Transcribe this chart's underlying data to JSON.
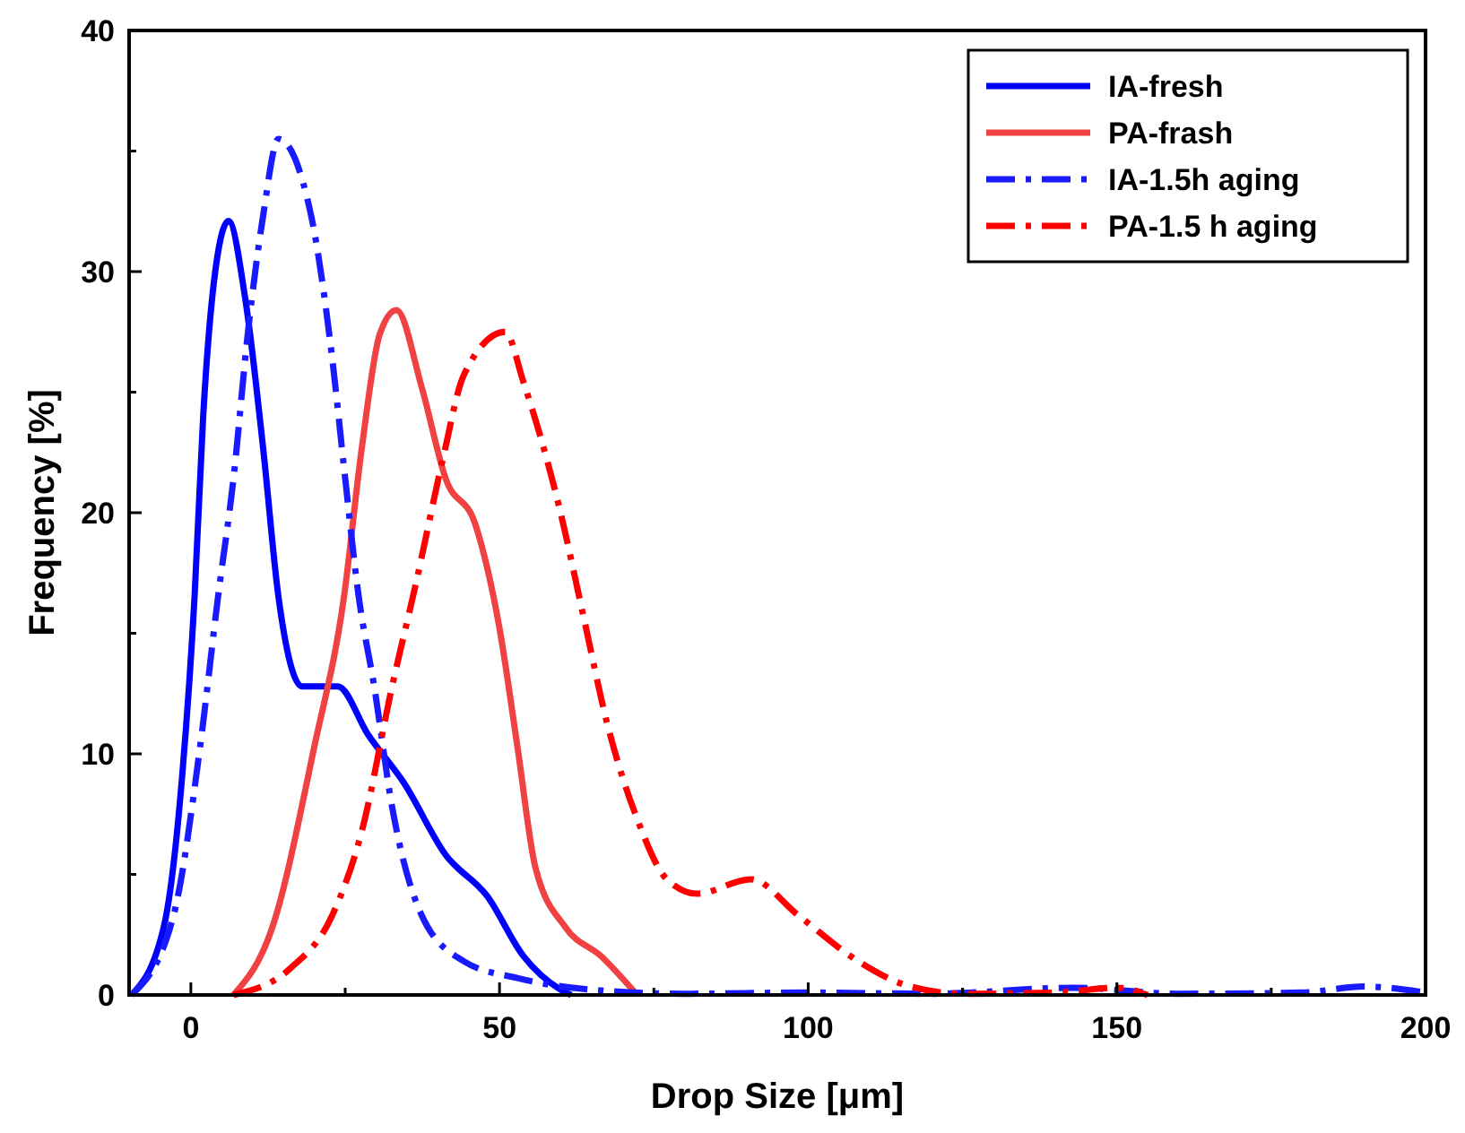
{
  "chart_data": {
    "type": "line",
    "xlabel": "Drop Size [μm]",
    "ylabel": "Frequency [%]",
    "xlim": [
      -10,
      200
    ],
    "ylim": [
      0,
      40
    ],
    "xticks": [
      0,
      {
        "value": 25,
        "label": null
      },
      50,
      {
        "value": 75,
        "label": null
      },
      100,
      {
        "value": 125,
        "label": null
      },
      150,
      {
        "value": 175,
        "label": null
      },
      200
    ],
    "yticks": [
      0,
      {
        "value": 5,
        "label": null
      },
      10,
      {
        "value": 15,
        "label": null
      },
      20,
      {
        "value": 25,
        "label": null
      },
      30,
      {
        "value": 35,
        "label": null
      },
      40
    ],
    "grid": false,
    "legend": "top right",
    "series": [
      {
        "name": "IA-fresh",
        "color": "#0000ff",
        "line_style": "solid",
        "x": [
          -9.6,
          -4.4,
          -1.4,
          0.6,
          2,
          4,
          6.1,
          8.8,
          11.7,
          14.2,
          18,
          23.8,
          28.7,
          34.5,
          41.3,
          48,
          53.9,
          59.7,
          61.6
        ],
        "values": [
          0,
          2.8,
          9.1,
          16.5,
          24,
          30.1,
          32.1,
          28.9,
          22.7,
          16.5,
          12.8,
          12.8,
          10.8,
          8.8,
          5.8,
          4.1,
          1.6,
          0.25,
          0
        ]
      },
      {
        "name": "PA-frash",
        "color": "#f04242",
        "line_style": "solid",
        "x": [
          6.9,
          13.2,
          20,
          24.8,
          27.7,
          30.6,
          33.3,
          37.4,
          41.3,
          46.1,
          50,
          52.9,
          55.8,
          60.7,
          66.5,
          72.3
        ],
        "values": [
          0,
          2.8,
          10.3,
          16.5,
          22.7,
          27.4,
          28.4,
          25.2,
          21.4,
          19.5,
          15.2,
          10.3,
          5.3,
          2.8,
          1.6,
          0
        ]
      },
      {
        "name": "IA-1.5h aging",
        "color": "#1a1aff",
        "line_style": "dashdot",
        "x": [
          -9.6,
          -2.8,
          1.5,
          4.4,
          6.9,
          9.3,
          11.7,
          14.2,
          19.5,
          22.9,
          24.8,
          27.2,
          29.7,
          32.6,
          37.4,
          44.2,
          52.9,
          63.6,
          80,
          100,
          120,
          143,
          160,
          180,
          190,
          200
        ],
        "values": [
          0,
          3.3,
          10.3,
          16.5,
          21.4,
          27.6,
          32.3,
          35.5,
          32.3,
          26.4,
          21.9,
          16.5,
          12.8,
          7.8,
          3.3,
          1.4,
          0.7,
          0.25,
          0.05,
          0.1,
          0.05,
          0.3,
          0.05,
          0.1,
          0.35,
          0.1
        ]
      },
      {
        "name": "PA-1.5 h aging",
        "color": "#ff0000",
        "line_style": "dashdot",
        "x": [
          6.9,
          16.1,
          22.9,
          27.7,
          32.6,
          36.4,
          40.8,
          44.2,
          50.9,
          53.9,
          59.7,
          63.6,
          67.4,
          72.3,
          77.1,
          82,
          90.7,
          98.4,
          108.1,
          115.9,
          125,
          140,
          150,
          155
        ],
        "values": [
          0,
          1.1,
          3.3,
          6.8,
          12.8,
          17,
          22.2,
          25.7,
          27.5,
          25.4,
          20.2,
          15.7,
          11.3,
          7.3,
          4.8,
          4.2,
          4.8,
          3.3,
          1.4,
          0.4,
          0.05,
          0.1,
          0.3,
          0
        ]
      }
    ]
  }
}
